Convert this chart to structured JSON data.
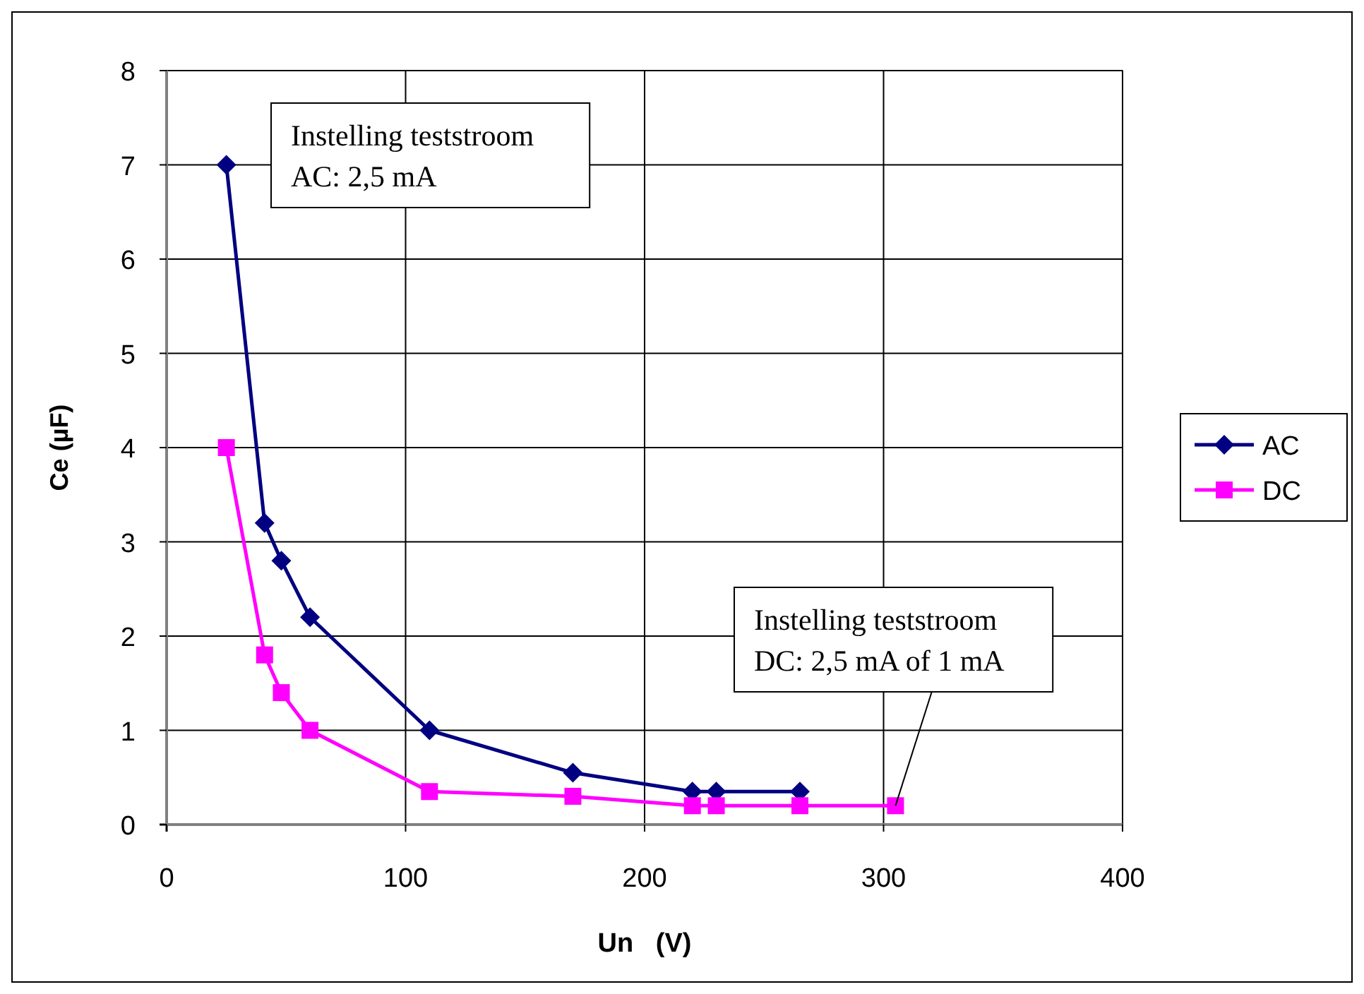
{
  "chart_data": {
    "type": "line",
    "xlabel": "Un   (V)",
    "ylabel": "Ce (µF)",
    "xlim": [
      0,
      400
    ],
    "xticks": [
      0,
      100,
      200,
      300,
      400
    ],
    "ylim": [
      0,
      8
    ],
    "yticks": [
      0,
      1,
      2,
      3,
      4,
      5,
      6,
      7,
      8
    ],
    "grid": true,
    "legend": "right",
    "line_style": "solid",
    "series": [
      {
        "name": "AC",
        "color": "#000080",
        "marker": "diamond",
        "x": [
          25,
          41,
          48,
          60,
          110,
          170,
          220,
          230,
          265
        ],
        "values": [
          7,
          3.2,
          2.8,
          2.2,
          1.0,
          0.55,
          0.35,
          0.35,
          0.35
        ]
      },
      {
        "name": "DC",
        "color": "#ff00ff",
        "marker": "square",
        "x": [
          25,
          41,
          48,
          60,
          110,
          170,
          220,
          230,
          265,
          305
        ],
        "values": [
          4,
          1.8,
          1.4,
          1.0,
          0.35,
          0.3,
          0.2,
          0.2,
          0.2,
          0.2
        ]
      }
    ],
    "annotations": [
      "Instelling teststroom\nAC: 2,5 mA",
      {
        "text": "Instelling teststroom\nDC: 2,5 mA of 1 mA",
        "x": 305,
        "y": 0.2
      }
    ]
  }
}
